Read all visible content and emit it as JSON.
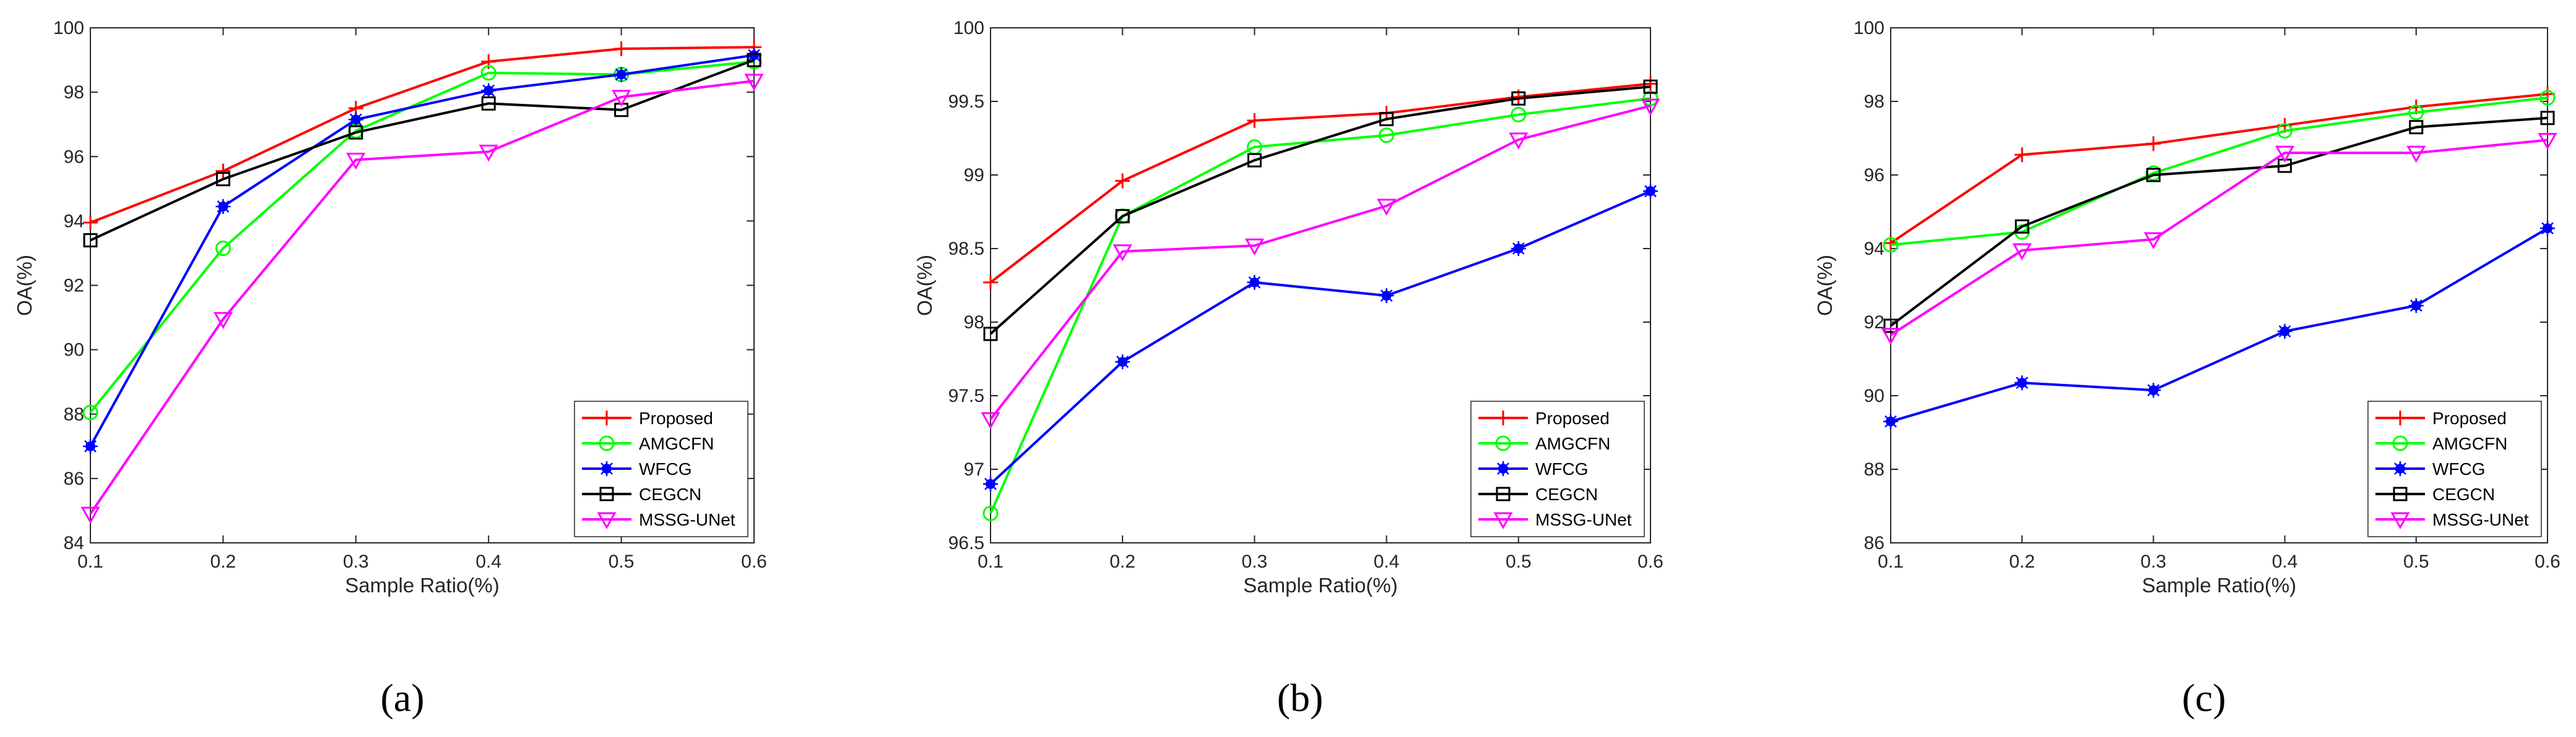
{
  "figure": {
    "panel_labels": [
      "(a)",
      "(b)",
      "(c)"
    ]
  },
  "chart_data": [
    {
      "type": "line",
      "panel": "(a)",
      "xlabel": "Sample Ratio(%)",
      "ylabel": "OA(%)",
      "x": [
        0.1,
        0.2,
        0.3,
        0.4,
        0.5,
        0.6
      ],
      "xticks": [
        "0.1",
        "0.2",
        "0.3",
        "0.4",
        "0.5",
        "0.6"
      ],
      "xlim": [
        0.1,
        0.6
      ],
      "ylim": [
        84,
        100
      ],
      "yticks": [
        "84",
        "86",
        "88",
        "90",
        "92",
        "94",
        "96",
        "98",
        "100"
      ],
      "legend_position": "bottom-right",
      "series": [
        {
          "name": "Proposed",
          "color": "#ff0000",
          "marker": "plus",
          "values": [
            93.95,
            95.55,
            97.5,
            98.95,
            99.35,
            99.4
          ]
        },
        {
          "name": "AMGCFN",
          "color": "#00ff00",
          "marker": "circle",
          "values": [
            88.05,
            93.15,
            96.8,
            98.6,
            98.55,
            98.95
          ]
        },
        {
          "name": "WFCG",
          "color": "#0000ff",
          "marker": "asterisk",
          "values": [
            87.0,
            94.45,
            97.15,
            98.05,
            98.55,
            99.15
          ]
        },
        {
          "name": "CEGCN",
          "color": "#000000",
          "marker": "square",
          "values": [
            93.4,
            95.3,
            96.75,
            97.65,
            97.45,
            99.0
          ]
        },
        {
          "name": "MSSG-UNet",
          "color": "#ff00ff",
          "marker": "triangle-down",
          "values": [
            84.9,
            90.95,
            95.9,
            96.15,
            97.85,
            98.35
          ]
        }
      ]
    },
    {
      "type": "line",
      "panel": "(b)",
      "xlabel": "Sample Ratio(%)",
      "ylabel": "OA(%)",
      "x": [
        0.1,
        0.2,
        0.3,
        0.4,
        0.5,
        0.6
      ],
      "xticks": [
        "0.1",
        "0.2",
        "0.3",
        "0.4",
        "0.5",
        "0.6"
      ],
      "xlim": [
        0.1,
        0.6
      ],
      "ylim": [
        96.5,
        100
      ],
      "yticks": [
        "96.5",
        "97",
        "97.5",
        "98",
        "98.5",
        "99",
        "99.5",
        "100"
      ],
      "legend_position": "bottom-right",
      "series": [
        {
          "name": "Proposed",
          "color": "#ff0000",
          "marker": "plus",
          "values": [
            98.27,
            98.96,
            99.37,
            99.42,
            99.53,
            99.62
          ]
        },
        {
          "name": "AMGCFN",
          "color": "#00ff00",
          "marker": "circle",
          "values": [
            96.7,
            98.72,
            99.19,
            99.27,
            99.41,
            99.52
          ]
        },
        {
          "name": "WFCG",
          "color": "#0000ff",
          "marker": "asterisk",
          "values": [
            96.9,
            97.73,
            98.27,
            98.18,
            98.5,
            98.89
          ]
        },
        {
          "name": "CEGCN",
          "color": "#000000",
          "marker": "square",
          "values": [
            97.92,
            98.72,
            99.1,
            99.38,
            99.52,
            99.6
          ]
        },
        {
          "name": "MSSG-UNet",
          "color": "#ff00ff",
          "marker": "triangle-down",
          "values": [
            97.34,
            98.48,
            98.52,
            98.79,
            99.24,
            99.47
          ]
        }
      ]
    },
    {
      "type": "line",
      "panel": "(c)",
      "xlabel": "Sample Ratio(%)",
      "ylabel": "OA(%)",
      "x": [
        0.1,
        0.2,
        0.3,
        0.4,
        0.5,
        0.6
      ],
      "xticks": [
        "0.1",
        "0.2",
        "0.3",
        "0.4",
        "0.5",
        "0.6"
      ],
      "xlim": [
        0.1,
        0.6
      ],
      "ylim": [
        86,
        100
      ],
      "yticks": [
        "86",
        "88",
        "90",
        "92",
        "94",
        "96",
        "98",
        "100"
      ],
      "legend_position": "bottom-right",
      "series": [
        {
          "name": "Proposed",
          "color": "#ff0000",
          "marker": "plus",
          "values": [
            94.15,
            96.55,
            96.85,
            97.35,
            97.85,
            98.2
          ]
        },
        {
          "name": "AMGCFN",
          "color": "#00ff00",
          "marker": "circle",
          "values": [
            94.1,
            94.45,
            96.05,
            97.2,
            97.7,
            98.1
          ]
        },
        {
          "name": "WFCG",
          "color": "#0000ff",
          "marker": "asterisk",
          "values": [
            89.3,
            90.35,
            90.15,
            91.75,
            92.45,
            94.55
          ]
        },
        {
          "name": "CEGCN",
          "color": "#000000",
          "marker": "square",
          "values": [
            91.9,
            94.6,
            96.0,
            96.25,
            97.3,
            97.55
          ]
        },
        {
          "name": "MSSG-UNet",
          "color": "#ff00ff",
          "marker": "triangle-down",
          "values": [
            91.65,
            93.95,
            94.25,
            96.6,
            96.6,
            96.95
          ]
        }
      ]
    }
  ]
}
